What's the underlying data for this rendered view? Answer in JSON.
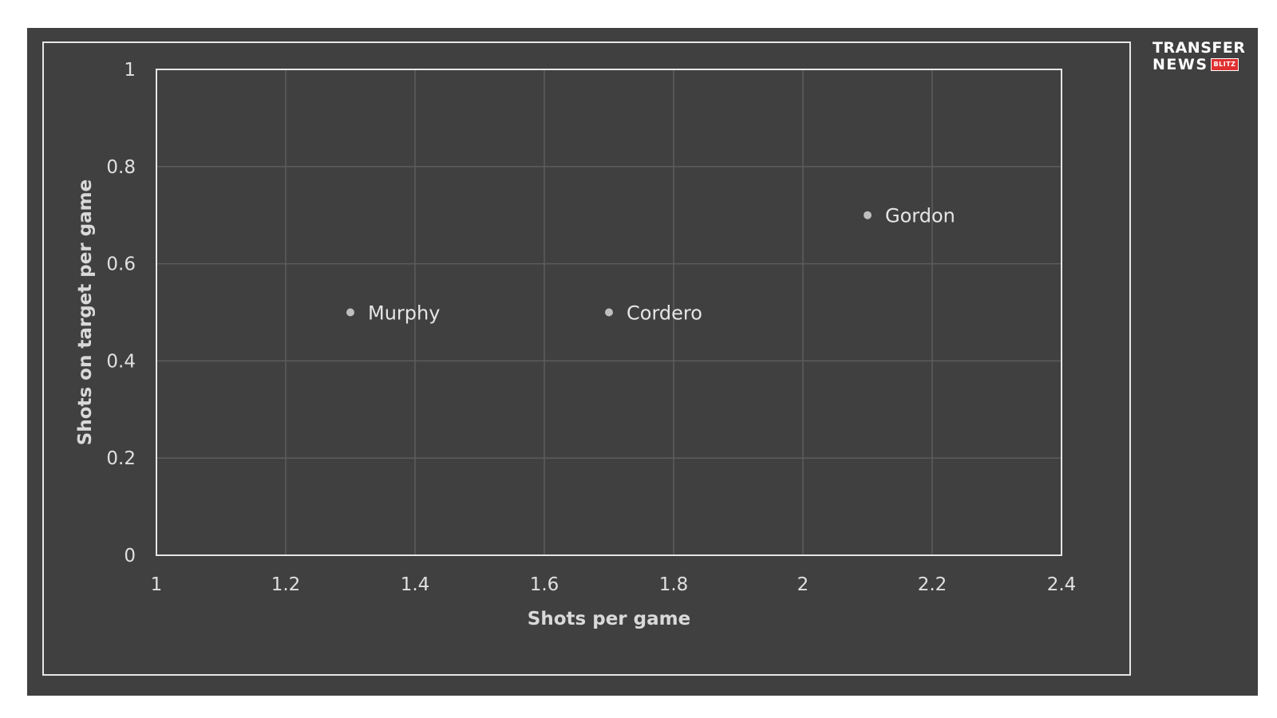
{
  "logo": {
    "line1": "TRANSFER",
    "line2": "NEWS",
    "badge": "BLITZ"
  },
  "colors": {
    "background": "#404040",
    "grid": "#5c5c5c",
    "plot_border": "#e6e6e6",
    "point": "#bfbfbf",
    "badge": "#e03030"
  },
  "chart_data": {
    "type": "scatter",
    "title": "",
    "xlabel": "Shots per game",
    "ylabel": "Shots on target per game",
    "xlim": [
      1,
      2.4
    ],
    "ylim": [
      0,
      1
    ],
    "xticks": [
      1,
      1.2,
      1.4,
      1.6,
      1.8,
      2,
      2.2,
      2.4
    ],
    "yticks": [
      0,
      0.2,
      0.4,
      0.6,
      0.8,
      1
    ],
    "xtick_labels": [
      "1",
      "1.2",
      "1.4",
      "1.6",
      "1.8",
      "2",
      "2.2",
      "2.4"
    ],
    "ytick_labels": [
      "0",
      "0.2",
      "0.4",
      "0.6",
      "0.8",
      "1"
    ],
    "grid": true,
    "points": [
      {
        "label": "Murphy",
        "x": 1.3,
        "y": 0.5
      },
      {
        "label": "Cordero",
        "x": 1.7,
        "y": 0.5
      },
      {
        "label": "Gordon",
        "x": 2.1,
        "y": 0.7
      }
    ]
  }
}
